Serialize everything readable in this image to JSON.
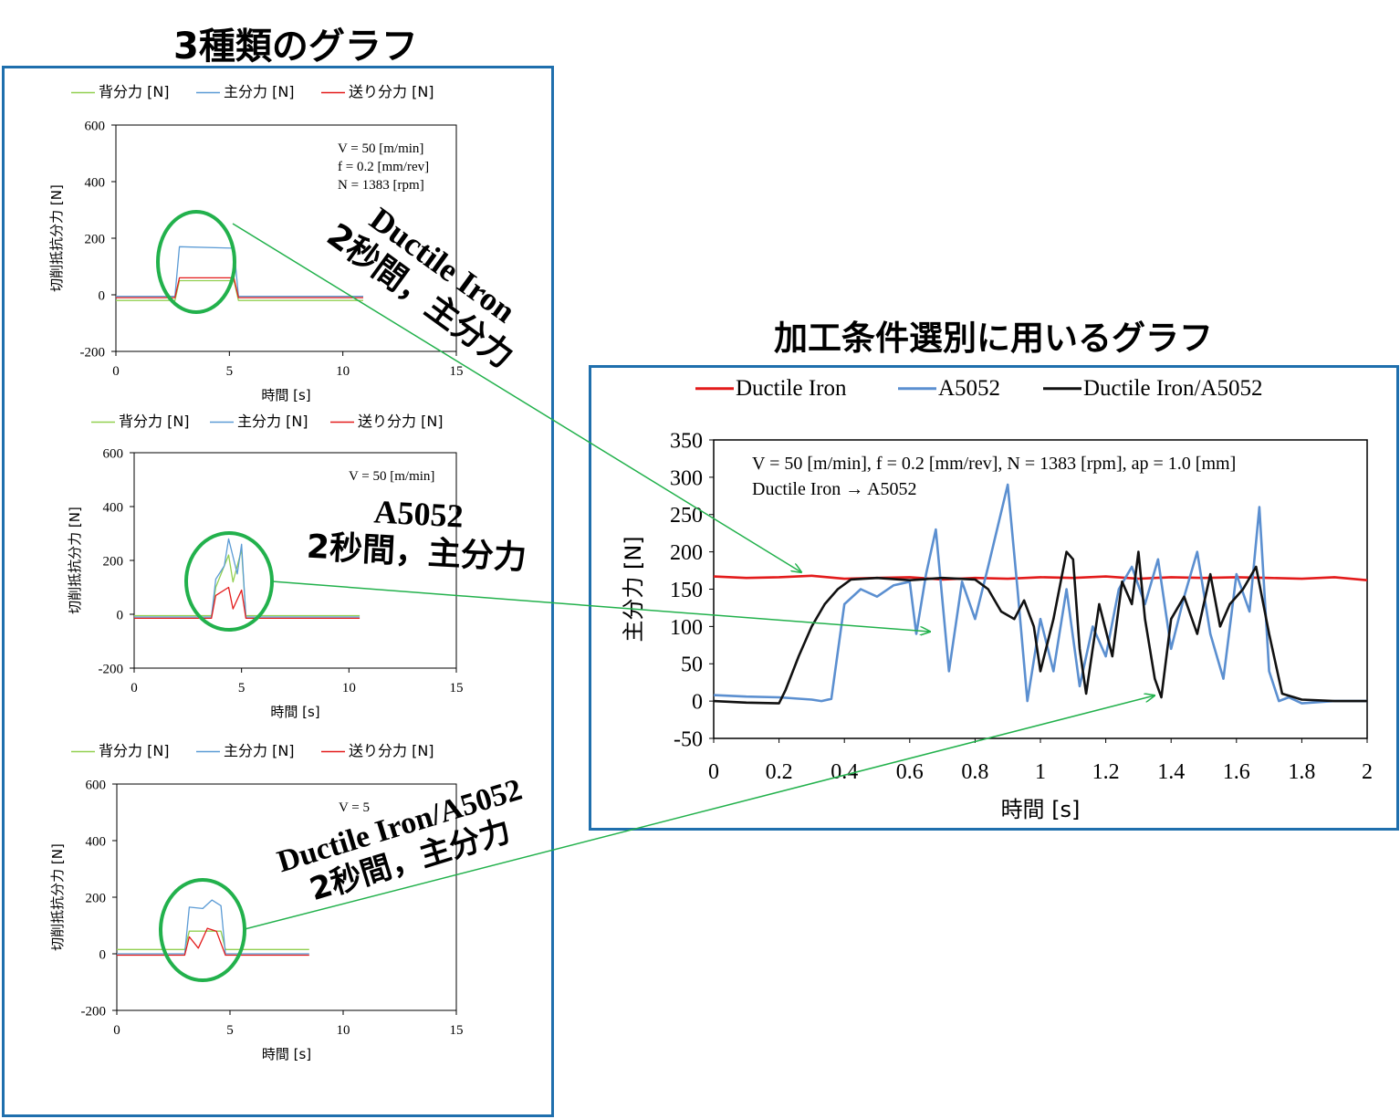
{
  "headings": {
    "left": "3種類のグラフ",
    "right": "加工条件選別に用いるグラフ"
  },
  "colors": {
    "frame": "#1f6fad",
    "highlight": "#22b14c",
    "ductile": "#e31b1b",
    "a5052": "#5b8fd0",
    "mixed": "#111111",
    "back_force": "#92d050",
    "main_force": "#5b9bd5",
    "feed_force": "#e31b1b"
  },
  "callouts": [
    {
      "line1": "Ductile Iron",
      "line2": "2秒間，主分力"
    },
    {
      "line1": "A5052",
      "line2": "2秒間，主分力"
    },
    {
      "line1": "Ductile Iron/A5052",
      "line2": "2秒間，主分力"
    }
  ],
  "chart_data": [
    {
      "type": "line",
      "title": "",
      "legend": [
        "背分力 [N]",
        "主分力 [N]",
        "送り分力 [N]"
      ],
      "legend_placement": "top",
      "xlabel": "時間 [s]",
      "ylabel": "切削抵抗分力 [N]",
      "xlim": [
        0,
        15
      ],
      "ylim": [
        -200,
        600
      ],
      "xticks": [
        "0",
        "5",
        "10",
        "15"
      ],
      "yticks": [
        "-200",
        "0",
        "200",
        "400",
        "600"
      ],
      "annotation": [
        "V = 50 [m/min]",
        "f = 0.2 [mm/rev]",
        "N = 1383 [rpm]"
      ],
      "series": [
        {
          "name": "背分力 [N]",
          "x": [
            0,
            2.6,
            2.8,
            5.2,
            5.4,
            10.9
          ],
          "values": [
            -20,
            -20,
            50,
            50,
            -20,
            -20
          ]
        },
        {
          "name": "主分力 [N]",
          "x": [
            0,
            2.6,
            2.8,
            5.2,
            5.4,
            10.9
          ],
          "values": [
            -5,
            -5,
            170,
            165,
            -5,
            -5
          ]
        },
        {
          "name": "送り分力 [N]",
          "x": [
            0,
            2.6,
            2.8,
            5.2,
            5.4,
            10.9
          ],
          "values": [
            -10,
            -10,
            60,
            60,
            -10,
            -10
          ]
        }
      ]
    },
    {
      "type": "line",
      "title": "",
      "legend": [
        "背分力 [N]",
        "主分力 [N]",
        "送り分力 [N]"
      ],
      "legend_placement": "top",
      "xlabel": "時間 [s]",
      "ylabel": "切削抵抗分力 [N]",
      "xlim": [
        0,
        15
      ],
      "ylim": [
        -200,
        600
      ],
      "xticks": [
        "0",
        "5",
        "10",
        "15"
      ],
      "yticks": [
        "-200",
        "0",
        "200",
        "400",
        "600"
      ],
      "annotation": [
        "V = 50 [m/min]"
      ],
      "series": [
        {
          "name": "背分力 [N]",
          "x": [
            0,
            3.6,
            3.8,
            4.4,
            4.6,
            5.0,
            5.2,
            10.5
          ],
          "values": [
            -5,
            -5,
            100,
            220,
            120,
            240,
            -5,
            -5
          ]
        },
        {
          "name": "主分力 [N]",
          "x": [
            0,
            3.6,
            3.8,
            4.2,
            4.4,
            4.8,
            5.0,
            5.2,
            10.5
          ],
          "values": [
            -10,
            -10,
            130,
            180,
            280,
            150,
            260,
            -10,
            -10
          ]
        },
        {
          "name": "送り分力 [N]",
          "x": [
            0,
            3.6,
            3.8,
            4.4,
            4.6,
            5.0,
            5.2,
            10.5
          ],
          "values": [
            -15,
            -15,
            70,
            100,
            20,
            90,
            -15,
            -15
          ]
        }
      ]
    },
    {
      "type": "line",
      "title": "",
      "legend": [
        "背分力 [N]",
        "主分力 [N]",
        "送り分力 [N]"
      ],
      "legend_placement": "top",
      "xlabel": "時間 [s]",
      "ylabel": "切削抵抗分力 [N]",
      "xlim": [
        0,
        15
      ],
      "ylim": [
        -200,
        600
      ],
      "xticks": [
        "0",
        "5",
        "10",
        "15"
      ],
      "yticks": [
        "-200",
        "0",
        "200",
        "400",
        "600"
      ],
      "annotation": [
        "V = 5"
      ],
      "series": [
        {
          "name": "背分力 [N]",
          "x": [
            0,
            3.0,
            3.2,
            4.6,
            4.8,
            8.5
          ],
          "values": [
            15,
            15,
            80,
            80,
            15,
            15
          ]
        },
        {
          "name": "主分力 [N]",
          "x": [
            0,
            3.0,
            3.2,
            3.8,
            4.2,
            4.6,
            4.8,
            8.5
          ],
          "values": [
            0,
            0,
            165,
            160,
            190,
            170,
            0,
            0
          ]
        },
        {
          "name": "送り分力 [N]",
          "x": [
            0,
            3.0,
            3.2,
            3.6,
            4.0,
            4.4,
            4.8,
            8.5
          ],
          "values": [
            -5,
            -5,
            60,
            20,
            90,
            80,
            -5,
            -5
          ]
        }
      ]
    },
    {
      "type": "line",
      "title": "",
      "legend": [
        "Ductile Iron",
        "A5052",
        "Ductile Iron/A5052"
      ],
      "legend_placement": "top",
      "xlabel": "時間 [s]",
      "ylabel": "主分力 [N]",
      "xlim": [
        0,
        2
      ],
      "ylim": [
        -50,
        350
      ],
      "xticks": [
        "0",
        "0.2",
        "0.4",
        "0.6",
        "0.8",
        "1",
        "1.2",
        "1.4",
        "1.6",
        "1.8",
        "2"
      ],
      "yticks": [
        "-50",
        "0",
        "50",
        "100",
        "150",
        "200",
        "250",
        "300",
        "350"
      ],
      "annotation": [
        "V = 50 [m/min], f = 0.2 [mm/rev], N = 1383 [rpm], ap = 1.0 [mm]",
        "Ductile Iron → A5052"
      ],
      "series": [
        {
          "name": "Ductile Iron",
          "x": [
            0,
            0.1,
            0.2,
            0.3,
            0.4,
            0.5,
            0.6,
            0.7,
            0.8,
            0.9,
            1.0,
            1.1,
            1.2,
            1.3,
            1.4,
            1.5,
            1.6,
            1.7,
            1.8,
            1.9,
            2.0
          ],
          "values": [
            167,
            165,
            166,
            168,
            164,
            165,
            166,
            163,
            165,
            164,
            166,
            165,
            167,
            164,
            166,
            165,
            166,
            165,
            164,
            166,
            162
          ]
        },
        {
          "name": "A5052",
          "x": [
            0,
            0.1,
            0.2,
            0.3,
            0.33,
            0.36,
            0.4,
            0.45,
            0.5,
            0.55,
            0.6,
            0.62,
            0.65,
            0.68,
            0.72,
            0.76,
            0.8,
            0.84,
            0.9,
            0.93,
            0.96,
            1.0,
            1.04,
            1.08,
            1.12,
            1.16,
            1.2,
            1.24,
            1.28,
            1.32,
            1.36,
            1.4,
            1.44,
            1.48,
            1.52,
            1.56,
            1.6,
            1.64,
            1.67,
            1.7,
            1.73,
            1.76,
            1.8,
            1.9,
            2.0
          ],
          "values": [
            8,
            6,
            5,
            2,
            0,
            3,
            130,
            150,
            140,
            155,
            160,
            90,
            170,
            230,
            40,
            160,
            110,
            180,
            290,
            150,
            0,
            110,
            40,
            150,
            20,
            100,
            60,
            150,
            180,
            130,
            190,
            70,
            140,
            200,
            90,
            30,
            170,
            120,
            260,
            40,
            0,
            5,
            -3,
            0,
            0
          ]
        },
        {
          "name": "Ductile Iron/A5052",
          "x": [
            0,
            0.1,
            0.2,
            0.22,
            0.26,
            0.3,
            0.34,
            0.38,
            0.42,
            0.5,
            0.6,
            0.7,
            0.8,
            0.84,
            0.88,
            0.92,
            0.95,
            0.98,
            1.0,
            1.04,
            1.08,
            1.1,
            1.12,
            1.14,
            1.18,
            1.22,
            1.25,
            1.28,
            1.3,
            1.32,
            1.35,
            1.37,
            1.4,
            1.44,
            1.48,
            1.52,
            1.55,
            1.58,
            1.62,
            1.66,
            1.7,
            1.74,
            1.8,
            1.9,
            2.0
          ],
          "values": [
            0,
            -2,
            -3,
            15,
            60,
            100,
            130,
            150,
            163,
            165,
            162,
            165,
            163,
            150,
            120,
            110,
            135,
            100,
            40,
            110,
            200,
            190,
            70,
            10,
            130,
            60,
            160,
            130,
            200,
            110,
            30,
            5,
            110,
            140,
            90,
            170,
            100,
            130,
            150,
            180,
            90,
            10,
            2,
            0,
            0
          ]
        }
      ]
    }
  ]
}
